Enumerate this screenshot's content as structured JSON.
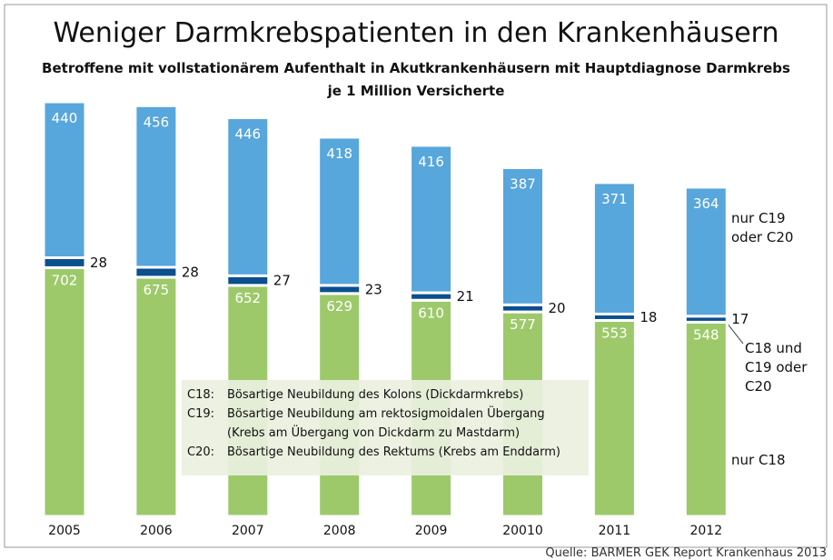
{
  "chart_data": {
    "type": "stacked-bar",
    "title": "Weniger Darmkrebspatienten in den Krankenhäusern",
    "subtitle": [
      "Betroffene mit vollstationärem Aufenthalt in Akutkrankenhäusern mit Hauptdiagnose Darmkrebs",
      "je 1 Million Versicherte"
    ],
    "categories": [
      "2005",
      "2006",
      "2007",
      "2008",
      "2009",
      "20010",
      "2011",
      "2012"
    ],
    "series": [
      {
        "name": "nur C18",
        "color": "#9dc96b",
        "values": [
          702,
          675,
          652,
          629,
          610,
          577,
          553,
          548
        ]
      },
      {
        "name": "C18 und C19 oder C20",
        "color": "#0b4f8e",
        "values": [
          28,
          28,
          27,
          23,
          21,
          20,
          18,
          17
        ]
      },
      {
        "name": "nur C19 oder C20",
        "color": "#57a6dc",
        "values": [
          440,
          456,
          446,
          418,
          416,
          387,
          371,
          364
        ]
      }
    ],
    "notes": [
      {
        "code": "C18:",
        "lines": [
          "Bösartige Neubildung des Kolons (Dickdarmkrebs)"
        ]
      },
      {
        "code": "C19:",
        "lines": [
          "Bösartige Neubildung am rektosigmoidalen Übergang",
          "(Krebs am Übergang von Dickdarm zu Mastdarm)"
        ]
      },
      {
        "code": "C20:",
        "lines": [
          "Bösartige Neubildung des Rektums (Krebs am Enddarm)"
        ]
      }
    ],
    "source": "Quelle: BARMER GEK Report Krankenhaus 2013"
  }
}
